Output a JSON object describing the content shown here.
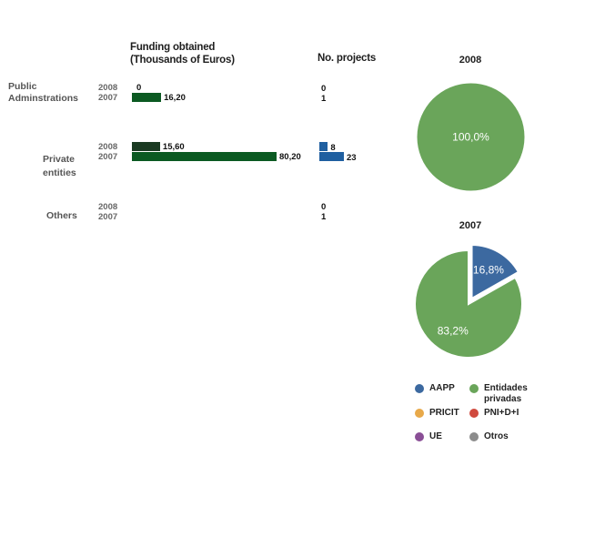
{
  "headers": {
    "funding_line1": "Funding obtained",
    "funding_line2": "(Thousands of Euros)",
    "projects": "No. projects"
  },
  "rows": [
    {
      "category_line1": "Public",
      "category_line2": "Adminstrations",
      "years": [
        {
          "year": "2008",
          "funding": 0,
          "funding_label": "0",
          "projects": 0,
          "projects_label": "0"
        },
        {
          "year": "2007",
          "funding": 16.2,
          "funding_label": "16,20",
          "projects": 1,
          "projects_label": "1"
        }
      ]
    },
    {
      "category_line1": "Private",
      "category_line2": "entities",
      "years": [
        {
          "year": "2008",
          "funding": 15.6,
          "funding_label": "15,60",
          "projects": 8,
          "projects_label": "8"
        },
        {
          "year": "2007",
          "funding": 80.2,
          "funding_label": "80,20",
          "projects": 23,
          "projects_label": "23"
        }
      ]
    },
    {
      "category_line1": "Others",
      "category_line2": "",
      "years": [
        {
          "year": "2008",
          "funding": 0,
          "funding_label": "",
          "projects": 0,
          "projects_label": "0"
        },
        {
          "year": "2007",
          "funding": 0,
          "funding_label": "",
          "projects": 1,
          "projects_label": "1"
        }
      ]
    }
  ],
  "colors": {
    "funding_2008": "#1a3a22",
    "funding_2007": "#0b5a22",
    "projects": "#1f5fa0",
    "aapp": "#3c69a0",
    "entidades_privadas": "#6aa55a",
    "pricit": "#e8a94a",
    "pni": "#d04a3e",
    "ue": "#8a4f96",
    "otros": "#8c8c8c"
  },
  "chart_data": [
    {
      "type": "bar",
      "title": "Funding obtained (Thousands of Euros)",
      "categories": [
        "Public Adminstrations",
        "Private entities",
        "Others"
      ],
      "series": [
        {
          "name": "2008",
          "values": [
            0,
            15.6,
            0
          ]
        },
        {
          "name": "2007",
          "values": [
            16.2,
            80.2,
            0
          ]
        }
      ]
    },
    {
      "type": "bar",
      "title": "No. projects",
      "categories": [
        "Public Adminstrations",
        "Private entities",
        "Others"
      ],
      "series": [
        {
          "name": "2008",
          "values": [
            0,
            8,
            0
          ]
        },
        {
          "name": "2007",
          "values": [
            1,
            23,
            1
          ]
        }
      ]
    },
    {
      "type": "pie",
      "title": "2008",
      "slices": [
        {
          "name": "Entidades privadas",
          "value": 100.0,
          "label": "100,0%",
          "color": "#6aa55a"
        }
      ]
    },
    {
      "type": "pie",
      "title": "2007",
      "slices": [
        {
          "name": "AAPP",
          "value": 16.8,
          "label": "16,8%",
          "color": "#3c69a0",
          "exploded": true
        },
        {
          "name": "Entidades privadas",
          "value": 83.2,
          "label": "83,2%",
          "color": "#6aa55a"
        }
      ]
    }
  ],
  "legend": [
    {
      "name": "AAPP",
      "line1": "AAPP",
      "line2": "",
      "color_key": "aapp"
    },
    {
      "name": "Entidades privadas",
      "line1": "Entidades",
      "line2": "privadas",
      "color_key": "entidades_privadas"
    },
    {
      "name": "PRICIT",
      "line1": "PRICIT",
      "line2": "",
      "color_key": "pricit"
    },
    {
      "name": "PNI+D+I",
      "line1": "PNI+D+I",
      "line2": "",
      "color_key": "pni"
    },
    {
      "name": "UE",
      "line1": "UE",
      "line2": "",
      "color_key": "ue"
    },
    {
      "name": "Otros",
      "line1": "Otros",
      "line2": "",
      "color_key": "otros"
    }
  ]
}
